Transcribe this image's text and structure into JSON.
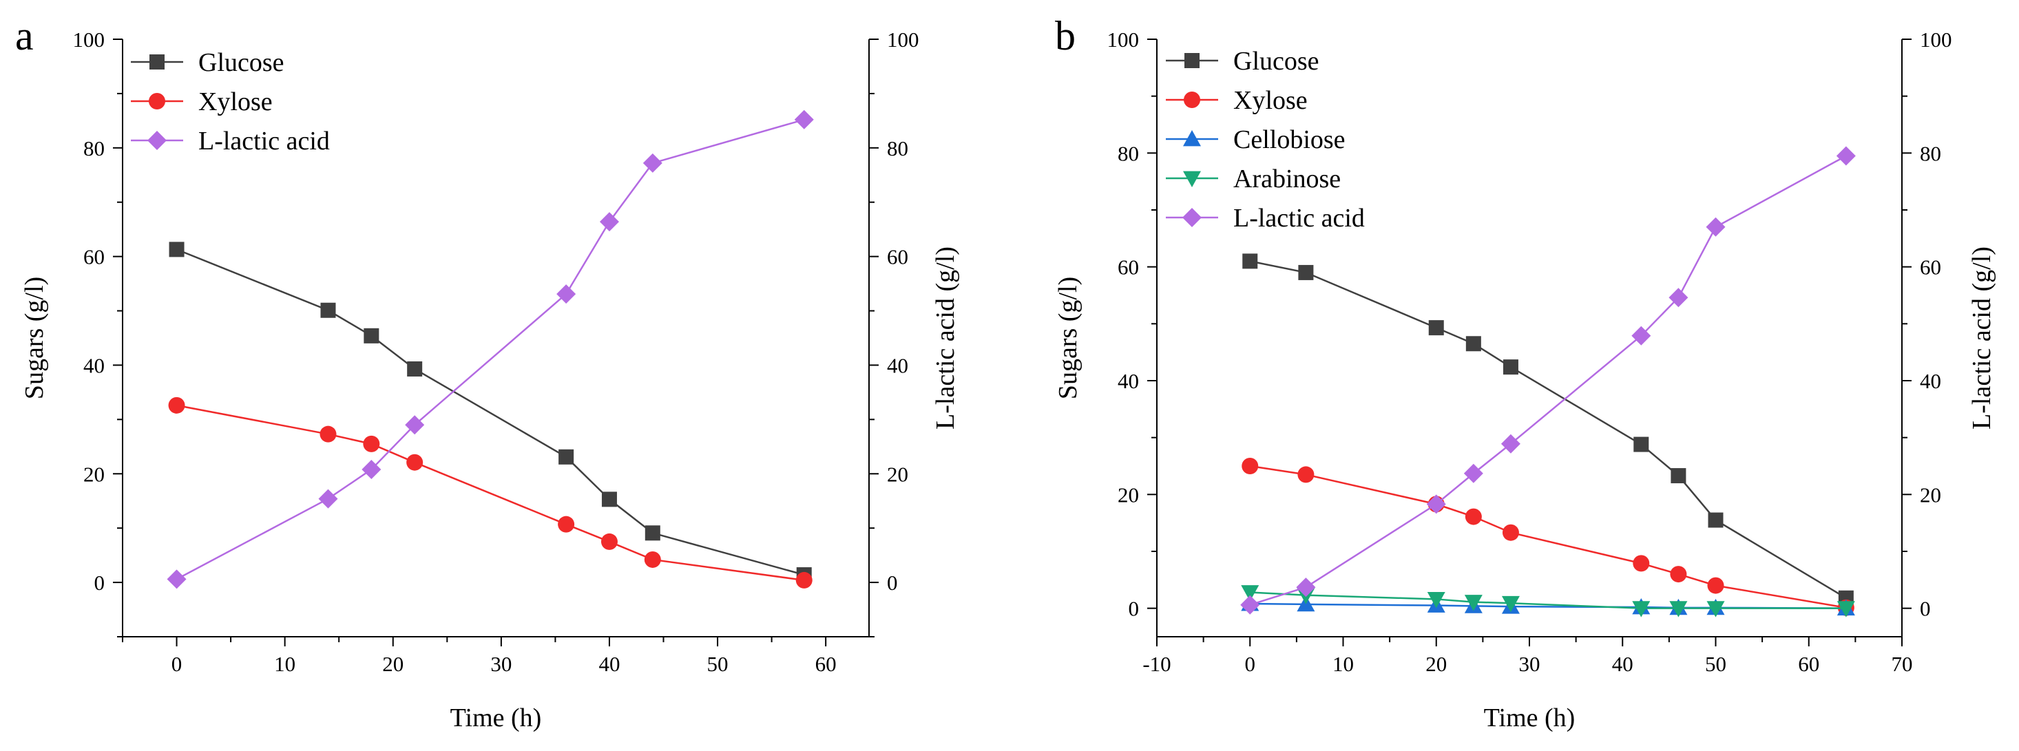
{
  "chart_data": [
    {
      "panel_label": "a",
      "type": "line",
      "xlabel": "Time (h)",
      "ylabel": "Sugars (g/l)",
      "y2label": "L-lactic acid (g/l)",
      "xlim": [
        -5,
        64
      ],
      "ylim": [
        -10,
        100
      ],
      "y2lim": [
        -10,
        100
      ],
      "xticks": [
        0,
        10,
        20,
        30,
        40,
        50,
        60
      ],
      "yticks": [
        0,
        20,
        40,
        60,
        80,
        100
      ],
      "y2ticks": [
        0,
        20,
        40,
        60,
        80,
        100
      ],
      "legend_position": "top-left",
      "series": [
        {
          "name": "Glucose",
          "color": "#404040",
          "marker": "square",
          "axis": "left",
          "x": [
            0,
            14,
            18,
            22,
            36,
            40,
            44,
            58
          ],
          "y": [
            61.3,
            50.1,
            45.4,
            39.3,
            23.1,
            15.3,
            9.1,
            1.4
          ]
        },
        {
          "name": "Xylose",
          "color": "#f02a2a",
          "marker": "circle",
          "axis": "left",
          "x": [
            0,
            14,
            18,
            22,
            36,
            40,
            44,
            58
          ],
          "y": [
            32.6,
            27.3,
            25.5,
            22.1,
            10.7,
            7.5,
            4.2,
            0.4
          ]
        },
        {
          "name": "L-lactic acid",
          "color": "#b36ae2",
          "marker": "diamond",
          "axis": "right",
          "x": [
            0,
            14,
            18,
            22,
            36,
            40,
            44,
            58
          ],
          "y": [
            0.6,
            15.4,
            20.8,
            29.0,
            53.1,
            66.4,
            77.2,
            85.2
          ]
        }
      ]
    },
    {
      "panel_label": "b",
      "type": "line",
      "xlabel": "Time (h)",
      "ylabel": "Sugars (g/l)",
      "y2label": "L-lactic acid (g/l)",
      "xlim": [
        -10,
        70
      ],
      "ylim": [
        -5,
        100
      ],
      "y2lim": [
        -5,
        100
      ],
      "xticks": [
        -10,
        0,
        10,
        20,
        30,
        40,
        50,
        60,
        70
      ],
      "yticks": [
        0,
        20,
        40,
        60,
        80,
        100
      ],
      "y2ticks": [
        0,
        20,
        40,
        60,
        80,
        100
      ],
      "legend_position": "top-left",
      "series": [
        {
          "name": "Glucose",
          "color": "#404040",
          "marker": "square",
          "axis": "left",
          "x": [
            0,
            6,
            20,
            24,
            28,
            42,
            46,
            50,
            64
          ],
          "y": [
            61.0,
            59.0,
            49.3,
            46.5,
            42.4,
            28.8,
            23.3,
            15.5,
            1.8
          ]
        },
        {
          "name": "Xylose",
          "color": "#f02a2a",
          "marker": "circle",
          "axis": "left",
          "x": [
            0,
            6,
            20,
            24,
            28,
            42,
            46,
            50,
            64
          ],
          "y": [
            25.0,
            23.5,
            18.3,
            16.1,
            13.3,
            7.9,
            6.0,
            4.0,
            0.1
          ]
        },
        {
          "name": "Cellobiose",
          "color": "#1d6fd6",
          "marker": "triangle-up",
          "axis": "left",
          "x": [
            0,
            6,
            20,
            24,
            28,
            42,
            46,
            50,
            64
          ],
          "y": [
            0.8,
            0.7,
            0.5,
            0.4,
            0.3,
            0.2,
            0.1,
            0.1,
            0.0
          ]
        },
        {
          "name": "Arabinose",
          "color": "#1aa877",
          "marker": "triangle-down",
          "axis": "left",
          "x": [
            0,
            6,
            20,
            24,
            28,
            42,
            46,
            50,
            64
          ],
          "y": [
            2.8,
            2.3,
            1.6,
            1.1,
            0.9,
            0.0,
            0.0,
            0.0,
            0.0
          ]
        },
        {
          "name": "L-lactic acid",
          "color": "#b36ae2",
          "marker": "diamond",
          "axis": "right",
          "x": [
            0,
            6,
            20,
            24,
            28,
            42,
            46,
            50,
            64
          ],
          "y": [
            0.6,
            3.7,
            18.3,
            23.7,
            28.9,
            47.9,
            54.6,
            67.0,
            79.5
          ]
        }
      ]
    }
  ]
}
